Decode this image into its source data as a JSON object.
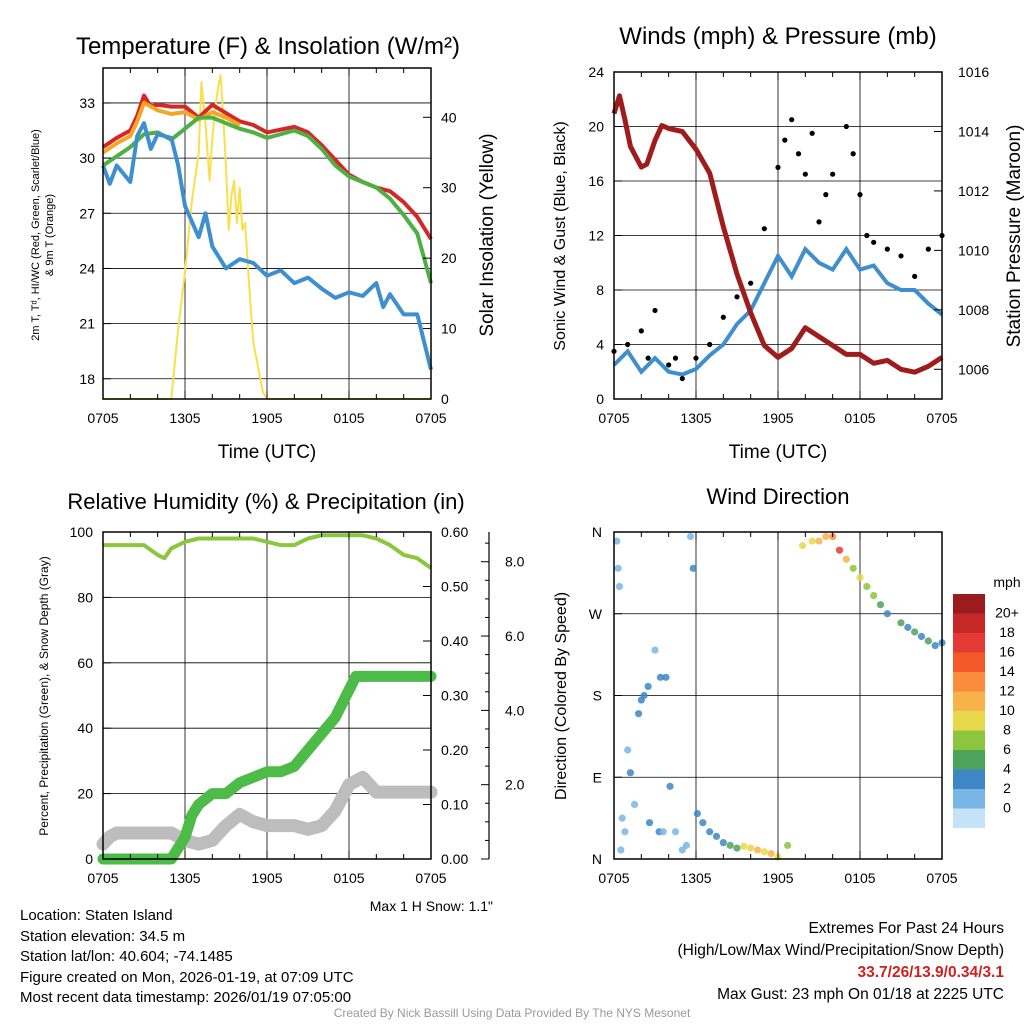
{
  "colors": {
    "red": "#d62728",
    "green": "#4cb043",
    "blue": "#3f8fcf",
    "orange": "#f5a623",
    "yellow": "#f9e04a",
    "maroon": "#a01c1c",
    "black": "#000000",
    "rh": "#8cc63f",
    "precip": "#4cbb47",
    "snow": "#bdbdbd"
  },
  "chart_data": [
    {
      "id": "temp",
      "type": "line",
      "title": "Temperature (F) & Insolation (W/m²)",
      "xlabel": "Time (UTC)",
      "ylabel_line1": "2m T, Tᵈ, HI/WC (Red, Green, Scarlet/Blue)",
      "ylabel_line2": "& 9m T (Orange)",
      "ylabel_right": "Solar Insolation (Yellow)",
      "xticks": [
        "0705",
        "1305",
        "1905",
        "0105",
        "0705"
      ],
      "ylim": [
        16.9,
        34.9
      ],
      "yticks": [
        18,
        21,
        24,
        27,
        30,
        33
      ],
      "ylim_right": [
        0,
        47
      ],
      "yticks_right": [
        0,
        10,
        20,
        30,
        40
      ],
      "series": [
        {
          "name": "2m T",
          "color": "red",
          "x": [
            0,
            1,
            2,
            2.5,
            3,
            3.5,
            4,
            5,
            6,
            6.5,
            7,
            8,
            10,
            11,
            12,
            14,
            15,
            16,
            17,
            18,
            19,
            20,
            21,
            22,
            23,
            24
          ],
          "values": [
            30.6,
            31.1,
            31.5,
            32.3,
            33.4,
            32.8,
            32.9,
            32.8,
            32.8,
            32.5,
            32.2,
            32.9,
            32.0,
            31.8,
            31.4,
            31.7,
            31.4,
            30.7,
            29.9,
            29.1,
            28.7,
            28.4,
            28.2,
            27.6,
            26.8,
            25.6
          ]
        },
        {
          "name": "9m T",
          "color": "orange",
          "x": [
            0,
            1,
            2,
            2.5,
            3,
            4,
            5,
            6,
            7,
            8,
            9,
            10
          ],
          "values": [
            30.3,
            30.8,
            31.2,
            32.0,
            33.0,
            32.6,
            32.4,
            32.5,
            32.1,
            32.5,
            32.2,
            31.8
          ]
        },
        {
          "name": "Dew point",
          "color": "green",
          "x": [
            0,
            1,
            2,
            3,
            4,
            5,
            6,
            7,
            8,
            9,
            10,
            11,
            12,
            14,
            15,
            16,
            17,
            18,
            19,
            20,
            21,
            22,
            22.5,
            23,
            24
          ],
          "values": [
            29.6,
            30.1,
            30.6,
            31.3,
            31.4,
            31.0,
            31.6,
            32.2,
            32.2,
            31.9,
            31.6,
            31.4,
            31.1,
            31.5,
            31.2,
            30.5,
            29.6,
            29.0,
            28.7,
            28.4,
            27.8,
            26.9,
            26.4,
            25.9,
            23.2
          ]
        },
        {
          "name": "HI/WC",
          "color": "blue",
          "x": [
            0,
            0.5,
            1,
            2,
            2.5,
            3,
            3.5,
            4,
            5,
            5.5,
            6,
            7,
            7.5,
            8,
            9,
            10,
            11,
            12,
            13,
            14,
            15,
            16,
            17,
            18,
            19,
            20,
            20.5,
            21,
            22,
            23,
            24
          ],
          "values": [
            29.6,
            28.6,
            29.6,
            28.7,
            31.2,
            31.9,
            30.5,
            31.3,
            31.1,
            29.6,
            27.4,
            25.7,
            27.0,
            25.2,
            24.0,
            24.5,
            24.3,
            23.6,
            23.9,
            23.2,
            23.5,
            22.9,
            22.4,
            22.7,
            22.5,
            23.2,
            21.9,
            22.6,
            21.5,
            21.5,
            18.5
          ]
        },
        {
          "name": "Solar Insolation",
          "color": "yellow",
          "axis": "right",
          "x": [
            0,
            5,
            5.5,
            6,
            6.5,
            7,
            7.2,
            7.5,
            7.8,
            8,
            8.2,
            8.4,
            8.6,
            8.8,
            9,
            9.2,
            9.4,
            9.6,
            9.8,
            10,
            10.2,
            10.4,
            10.7,
            11,
            11.4,
            11.7,
            12,
            24
          ],
          "values": [
            0,
            0,
            10,
            18,
            28,
            35,
            45,
            39,
            31,
            37,
            41,
            44,
            46,
            40,
            33,
            24,
            29,
            31,
            25,
            30,
            24,
            25,
            16,
            8,
            4,
            1,
            0,
            0
          ]
        }
      ]
    },
    {
      "id": "wind",
      "type": "line",
      "title": "Winds (mph) & Pressure (mb)",
      "xlabel": "Time (UTC)",
      "ylabel": "Sonic Wind & Gust (Blue, Black)",
      "ylabel_right": "Station Pressure (Maroon)",
      "xticks": [
        "0705",
        "1305",
        "1905",
        "0105",
        "0705"
      ],
      "ylim": [
        0,
        24
      ],
      "yticks": [
        0,
        4,
        8,
        12,
        16,
        20,
        24
      ],
      "ylim_right": [
        1005.0,
        1016.0
      ],
      "yticks_right": [
        1006,
        1008,
        1010,
        1012,
        1014,
        1016
      ],
      "series": [
        {
          "name": "Station Pressure",
          "color": "maroon",
          "axis": "right",
          "x": [
            0,
            0.4,
            0.8,
            1.2,
            2,
            2.4,
            3,
            3.5,
            4,
            5,
            6,
            7,
            8,
            9,
            10,
            11,
            12,
            13,
            14,
            15,
            16,
            17,
            18,
            19,
            20,
            21,
            22,
            23,
            24
          ],
          "values": [
            1014.6,
            1015.2,
            1014.4,
            1013.5,
            1012.8,
            1012.9,
            1013.7,
            1014.2,
            1014.1,
            1014.0,
            1013.4,
            1012.6,
            1010.8,
            1009.2,
            1007.9,
            1006.8,
            1006.4,
            1006.7,
            1007.4,
            1007.1,
            1006.8,
            1006.5,
            1006.5,
            1006.2,
            1006.3,
            1006.0,
            1005.9,
            1006.1,
            1006.4
          ]
        },
        {
          "name": "Sonic Wind",
          "color": "blue",
          "x": [
            0,
            1,
            2,
            3,
            4,
            5,
            6,
            7,
            8,
            9,
            10,
            11,
            12,
            13,
            14,
            15,
            16,
            17,
            18,
            19,
            20,
            21,
            22,
            23,
            24
          ],
          "values": [
            2.5,
            3.5,
            2.0,
            3.0,
            2.0,
            1.8,
            2.2,
            3.2,
            4.0,
            5.5,
            6.5,
            8.5,
            10.5,
            9.0,
            11.0,
            10.0,
            9.5,
            11.0,
            9.5,
            9.8,
            8.5,
            8.0,
            8.0,
            7.0,
            6.2
          ]
        },
        {
          "name": "Gust",
          "color": "black",
          "marker": "dot",
          "x": [
            0,
            1,
            2,
            2.5,
            3,
            4,
            4.5,
            5,
            6,
            7,
            8,
            9,
            10,
            11,
            12,
            12.5,
            13,
            13.5,
            14,
            14.5,
            15,
            15.5,
            16,
            17,
            17.5,
            18,
            18.5,
            19,
            20,
            21,
            22,
            23,
            24
          ],
          "values": [
            3.5,
            4.0,
            5.0,
            3.0,
            6.5,
            2.5,
            3.0,
            1.5,
            3.0,
            4.0,
            6.0,
            7.5,
            8.5,
            12.5,
            17.0,
            19.0,
            20.5,
            18.0,
            16.5,
            19.5,
            13.0,
            15.0,
            16.5,
            20.0,
            18.0,
            15.0,
            12.0,
            11.5,
            11.0,
            10.5,
            9.0,
            11.0,
            12.0
          ]
        }
      ]
    },
    {
      "id": "rh",
      "type": "line",
      "title": "Relative Humidity (%) & Precipitation (in)",
      "ylabel": "Percent, Precipitation (Green), & Snow Depth (Gray)",
      "xticks": [
        "0705",
        "1305",
        "1905",
        "0105",
        "0705"
      ],
      "ylim": [
        0,
        100
      ],
      "yticks": [
        0,
        20,
        40,
        60,
        80,
        100
      ],
      "ylim_precip": [
        0,
        0.6
      ],
      "yticks_precip": [
        "0.00",
        "0.10",
        "0.20",
        "0.30",
        "0.40",
        "0.50",
        "0.60"
      ],
      "ylim_snow": [
        0,
        8.8
      ],
      "yticks_snow": [
        "2.0",
        "4.0",
        "6.0",
        "8.0"
      ],
      "series": [
        {
          "name": "Relative Humidity",
          "color": "rh",
          "x": [
            0,
            1,
            2,
            3,
            4,
            4.5,
            5,
            6,
            7,
            8,
            9,
            10,
            11,
            12,
            13,
            14,
            15,
            16,
            17,
            18,
            19,
            20,
            21,
            22,
            23,
            24
          ],
          "values": [
            96,
            96,
            96,
            96,
            93,
            92,
            95,
            97,
            98,
            98,
            98,
            98,
            98,
            97,
            96,
            96,
            98,
            99,
            99,
            99,
            99,
            98,
            96,
            93,
            92,
            89
          ]
        },
        {
          "name": "Precipitation",
          "color": "precip",
          "axis": "precip",
          "x": [
            0,
            1,
            2,
            3,
            4,
            5,
            6,
            6.5,
            7,
            8,
            9,
            10,
            11,
            12,
            13,
            14,
            15,
            16,
            17,
            18,
            18.5,
            19,
            20,
            21,
            22,
            23,
            24
          ],
          "values": [
            0,
            0,
            0,
            0,
            0,
            0,
            0.04,
            0.08,
            0.1,
            0.12,
            0.12,
            0.14,
            0.15,
            0.16,
            0.16,
            0.17,
            0.2,
            0.23,
            0.26,
            0.31,
            0.335,
            0.335,
            0.335,
            0.335,
            0.335,
            0.335,
            0.335
          ]
        },
        {
          "name": "Snow Depth",
          "color": "snow",
          "axis": "snow",
          "x": [
            0,
            0.5,
            1,
            2,
            3,
            4,
            5,
            6,
            7,
            8,
            9,
            10,
            11,
            12,
            13,
            14,
            15,
            16,
            17,
            18,
            19,
            20,
            21,
            22,
            23,
            24
          ],
          "values": [
            0.4,
            0.6,
            0.7,
            0.7,
            0.7,
            0.7,
            0.7,
            0.5,
            0.4,
            0.5,
            0.9,
            1.2,
            1.0,
            0.9,
            0.9,
            0.9,
            0.8,
            0.9,
            1.3,
            2.0,
            2.2,
            1.8,
            1.8,
            1.8,
            1.8,
            1.8
          ]
        }
      ]
    },
    {
      "id": "dir",
      "type": "scatter",
      "title": "Wind Direction",
      "ylabel": "Direction (Colored By Speed)",
      "xticks": [
        "0705",
        "1305",
        "1905",
        "0105",
        "0705"
      ],
      "yticks": [
        "N",
        "E",
        "S",
        "W",
        "N"
      ],
      "colorbar": {
        "title": "mph",
        "labels": [
          "20+",
          "18",
          "16",
          "14",
          "12",
          "10",
          "8",
          "6",
          "4",
          "2",
          "0"
        ],
        "colors": [
          "#9b1c1c",
          "#c62828",
          "#e53935",
          "#f4592a",
          "#fb8c3c",
          "#f9b14a",
          "#e6d84a",
          "#8cc63f",
          "#4ea35b",
          "#3d87c6",
          "#79b6e5",
          "#c5e3f6"
        ]
      },
      "points": [
        [
          0.2,
          350,
          2
        ],
        [
          0.3,
          320,
          1
        ],
        [
          0.4,
          300,
          2
        ],
        [
          0.5,
          10,
          1
        ],
        [
          0.6,
          45,
          2
        ],
        [
          0.8,
          30,
          2
        ],
        [
          1.0,
          120,
          2
        ],
        [
          1.2,
          95,
          3
        ],
        [
          1.5,
          60,
          2
        ],
        [
          1.8,
          160,
          3
        ],
        [
          2.0,
          175,
          3
        ],
        [
          2.2,
          180,
          4
        ],
        [
          2.5,
          190,
          3
        ],
        [
          2.6,
          40,
          3
        ],
        [
          3.0,
          230,
          2
        ],
        [
          3.3,
          30,
          3
        ],
        [
          3.4,
          200,
          4
        ],
        [
          3.6,
          30,
          2
        ],
        [
          3.8,
          200,
          3
        ],
        [
          4.1,
          80,
          3
        ],
        [
          4.5,
          30,
          1
        ],
        [
          5.0,
          10,
          2
        ],
        [
          5.3,
          15,
          2
        ],
        [
          5.6,
          355,
          2
        ],
        [
          5.8,
          320,
          3
        ],
        [
          6.1,
          50,
          4
        ],
        [
          6.5,
          40,
          3
        ],
        [
          7.0,
          30,
          4
        ],
        [
          7.5,
          25,
          4
        ],
        [
          8.0,
          18,
          4
        ],
        [
          8.5,
          15,
          5
        ],
        [
          9.0,
          12,
          6
        ],
        [
          9.5,
          14,
          9
        ],
        [
          10.0,
          12,
          10
        ],
        [
          10.5,
          10,
          11
        ],
        [
          11.0,
          8,
          10
        ],
        [
          11.5,
          6,
          12
        ],
        [
          12.0,
          2,
          9
        ],
        [
          12.7,
          15,
          8
        ],
        [
          13.8,
          345,
          9
        ],
        [
          14.5,
          350,
          10
        ],
        [
          15.0,
          350,
          11
        ],
        [
          15.5,
          355,
          12
        ],
        [
          16.0,
          355,
          14
        ],
        [
          16.5,
          340,
          18
        ],
        [
          17.0,
          330,
          12
        ],
        [
          17.5,
          320,
          8
        ],
        [
          18.0,
          310,
          9
        ],
        [
          18.5,
          300,
          8
        ],
        [
          19.0,
          290,
          7
        ],
        [
          19.5,
          280,
          5
        ],
        [
          20.0,
          270,
          4
        ],
        [
          21.0,
          260,
          6
        ],
        [
          21.5,
          255,
          4
        ],
        [
          22.0,
          250,
          5
        ],
        [
          22.5,
          245,
          4
        ],
        [
          23.0,
          240,
          6
        ],
        [
          23.5,
          235,
          3
        ],
        [
          24.0,
          238,
          4
        ]
      ]
    }
  ],
  "snow_max_label": "Max 1 H Snow: 1.1\"",
  "info": {
    "location": "Location: Staten Island",
    "elevation": "Station elevation: 34.5 m",
    "latlon": "Station lat/lon: 40.604; -74.1485",
    "created": "Figure created on Mon, 2026-01-19, at 07:09 UTC",
    "recent": "Most recent data timestamp: 2026/01/19 07:05:00"
  },
  "extremes": {
    "title": "Extremes For Past 24 Hours",
    "subtitle": "(High/Low/Max Wind/Precipitation/Snow Depth)",
    "values": "33.7/26/13.9/0.34/3.1",
    "gust": "Max Gust: 23 mph On 01/18 at 2225 UTC"
  },
  "credit": "Created By Nick Bassill Using Data Provided By The NYS Mesonet"
}
